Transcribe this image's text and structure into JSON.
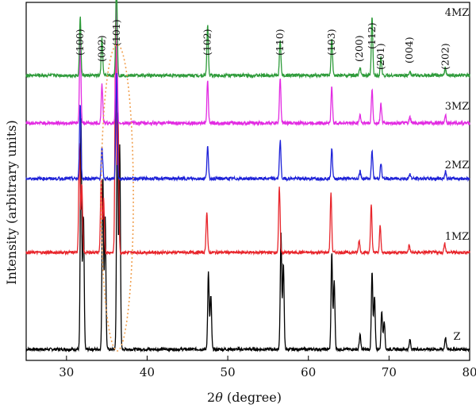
{
  "chart_data": {
    "type": "line",
    "title": "",
    "xlabel_prefix": "2",
    "xlabel_symbol": "θ",
    "xlabel_suffix": " (degree)",
    "ylabel": "Intensity (arbitrary units)",
    "xlim": [
      25,
      80
    ],
    "xticks": [
      "30",
      "40",
      "50",
      "60",
      "70",
      "80"
    ],
    "xtick_values": [
      30,
      40,
      50,
      60,
      70,
      80
    ],
    "grid": false,
    "legend": "none",
    "series": [
      {
        "name": "Z",
        "color": "#000000",
        "peaks": [
          [
            31.8,
            0.95
          ],
          [
            32.1,
            0.55
          ],
          [
            34.5,
            0.72
          ],
          [
            34.8,
            0.55
          ],
          [
            36.3,
            1.0
          ],
          [
            36.6,
            0.85
          ],
          [
            47.6,
            0.32
          ],
          [
            47.9,
            0.22
          ],
          [
            56.6,
            0.48
          ],
          [
            56.9,
            0.36
          ],
          [
            62.9,
            0.4
          ],
          [
            63.2,
            0.28
          ],
          [
            66.4,
            0.06
          ],
          [
            67.9,
            0.32
          ],
          [
            68.2,
            0.22
          ],
          [
            69.1,
            0.16
          ],
          [
            69.4,
            0.12
          ],
          [
            72.6,
            0.04
          ],
          [
            77.0,
            0.05
          ]
        ]
      },
      {
        "name": "1MZ",
        "color": "#e8252b",
        "peaks": [
          [
            31.6,
            0.45
          ],
          [
            31.9,
            0.28
          ],
          [
            34.3,
            0.3
          ],
          [
            34.6,
            0.22
          ],
          [
            36.1,
            0.97
          ],
          [
            36.4,
            0.55
          ],
          [
            47.4,
            0.17
          ],
          [
            56.4,
            0.27
          ],
          [
            62.8,
            0.25
          ],
          [
            66.3,
            0.05
          ],
          [
            67.8,
            0.2
          ],
          [
            68.9,
            0.11
          ],
          [
            72.5,
            0.03
          ],
          [
            76.9,
            0.04
          ]
        ]
      },
      {
        "name": "2MZ",
        "color": "#1e22d8",
        "peaks": [
          [
            31.7,
            0.3
          ],
          [
            34.4,
            0.12
          ],
          [
            36.2,
            0.42
          ],
          [
            47.5,
            0.13
          ],
          [
            56.5,
            0.15
          ],
          [
            62.9,
            0.12
          ],
          [
            66.4,
            0.03
          ],
          [
            67.9,
            0.11
          ],
          [
            69.0,
            0.06
          ],
          [
            72.6,
            0.02
          ],
          [
            77.0,
            0.03
          ]
        ]
      },
      {
        "name": "3MZ",
        "color": "#e22be2",
        "peaks": [
          [
            31.7,
            0.32
          ],
          [
            34.4,
            0.14
          ],
          [
            36.2,
            0.47
          ],
          [
            47.5,
            0.15
          ],
          [
            56.5,
            0.16
          ],
          [
            62.9,
            0.13
          ],
          [
            66.4,
            0.03
          ],
          [
            67.9,
            0.12
          ],
          [
            69.0,
            0.07
          ],
          [
            72.6,
            0.02
          ],
          [
            77.0,
            0.03
          ]
        ]
      },
      {
        "name": "4MZ",
        "color": "#2e9b3a",
        "peaks": [
          [
            31.7,
            0.22
          ],
          [
            34.4,
            0.14
          ],
          [
            36.2,
            0.37
          ],
          [
            47.5,
            0.19
          ],
          [
            56.5,
            0.13
          ],
          [
            62.9,
            0.14
          ],
          [
            66.4,
            0.03
          ],
          [
            67.9,
            0.22
          ],
          [
            69.0,
            0.07
          ],
          [
            72.6,
            0.02
          ],
          [
            77.0,
            0.03
          ]
        ]
      }
    ],
    "annotations": [
      {
        "text": "(100)",
        "x": 31.7
      },
      {
        "text": "(002)",
        "x": 34.4
      },
      {
        "text": "(101)",
        "x": 36.2
      },
      {
        "text": "(102)",
        "x": 47.5
      },
      {
        "text": "(110)",
        "x": 56.5
      },
      {
        "text": "(103)",
        "x": 62.9
      },
      {
        "text": "(200)",
        "x": 66.3
      },
      {
        "text": "(112)",
        "x": 67.9
      },
      {
        "text": "(201)",
        "x": 69.0
      },
      {
        "text": "(004)",
        "x": 72.5
      },
      {
        "text": "(202)",
        "x": 77.0
      }
    ],
    "highlight_ellipse": {
      "x_center": 36.3,
      "x_halfwidth": 2.0,
      "color": "#f0a050"
    }
  }
}
